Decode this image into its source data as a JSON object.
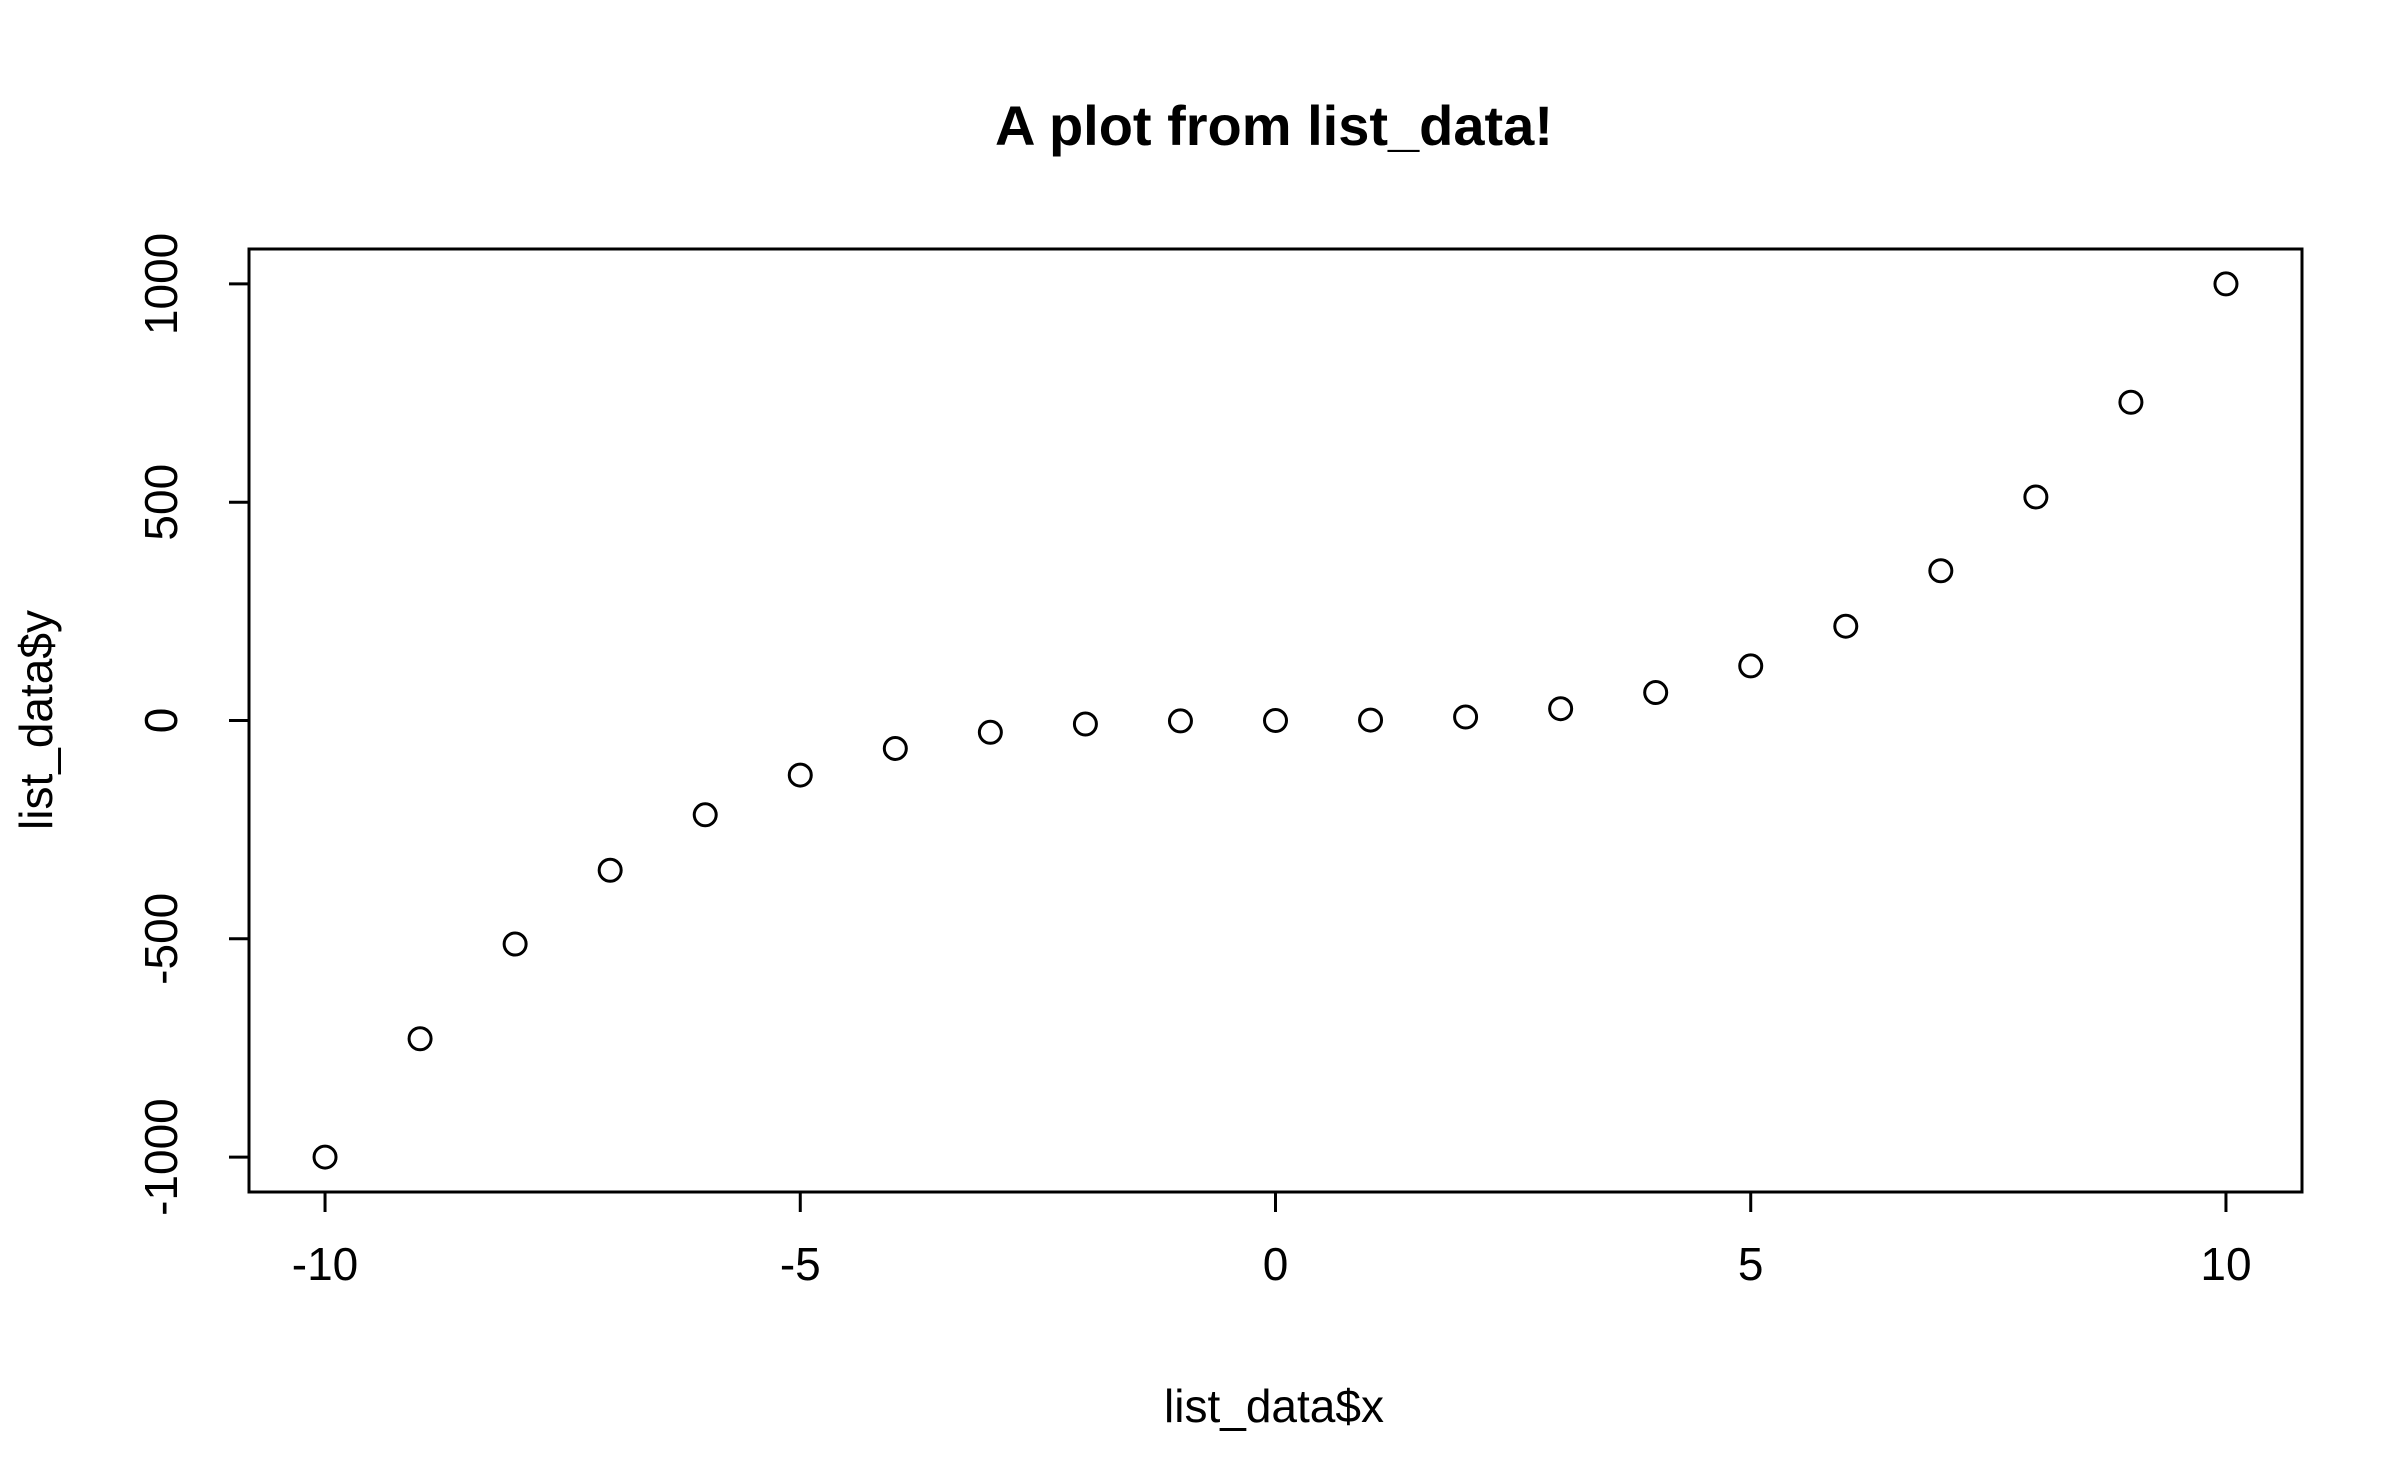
{
  "chart_data": {
    "type": "scatter",
    "title": "A plot from list_data!",
    "xlabel": "list_data$x",
    "ylabel": "list_data$y",
    "xlim": [
      -10.8,
      10.8
    ],
    "ylim": [
      -1080,
      1080
    ],
    "x_ticks": [
      -10,
      -5,
      0,
      5,
      10
    ],
    "x_tick_labels": [
      "-10",
      "-5",
      "0",
      "5",
      "10"
    ],
    "y_ticks": [
      -1000,
      -500,
      0,
      500,
      1000
    ],
    "y_tick_labels": [
      "-1000",
      "-500",
      "0",
      "500",
      "1000"
    ],
    "grid": false,
    "marker": "open-circle",
    "point_color": "#000000",
    "x": [
      -10,
      -9,
      -8,
      -7,
      -6,
      -5,
      -4,
      -3,
      -2,
      -1,
      0,
      1,
      2,
      3,
      4,
      5,
      6,
      7,
      8,
      9,
      10
    ],
    "y": [
      -1000,
      -729,
      -512,
      -343,
      -216,
      -125,
      -64,
      -27,
      -8,
      -1,
      0,
      1,
      8,
      27,
      64,
      125,
      216,
      343,
      512,
      729,
      1000
    ]
  }
}
